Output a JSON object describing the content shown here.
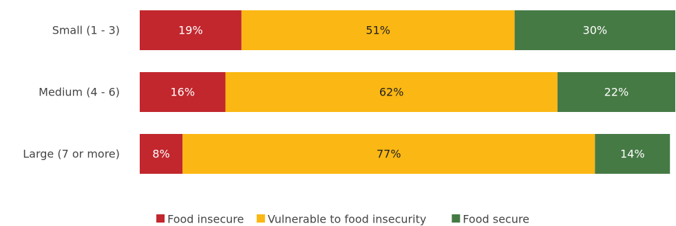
{
  "chart_data": {
    "type": "bar",
    "orientation": "horizontal",
    "stacked": true,
    "title": "",
    "xlabel": "",
    "ylabel": "",
    "categories": [
      "Small (1 - 3)",
      "Medium (4 - 6)",
      "Large (7 or more)"
    ],
    "series": [
      {
        "name": "Food insecure",
        "values": [
          19,
          16,
          8
        ],
        "color": "#C1272D",
        "label_color": "#FFFFFF"
      },
      {
        "name": "Vulnerable to food insecurity",
        "values": [
          51,
          62,
          77
        ],
        "color": "#FBB713",
        "label_color": "#222222"
      },
      {
        "name": "Food secure",
        "values": [
          30,
          22,
          14
        ],
        "color": "#467A45",
        "label_color": "#FFFFFF"
      }
    ],
    "value_suffix": "%",
    "xlim": [
      0,
      100
    ],
    "grid": false,
    "legend_position": "bottom-center"
  }
}
